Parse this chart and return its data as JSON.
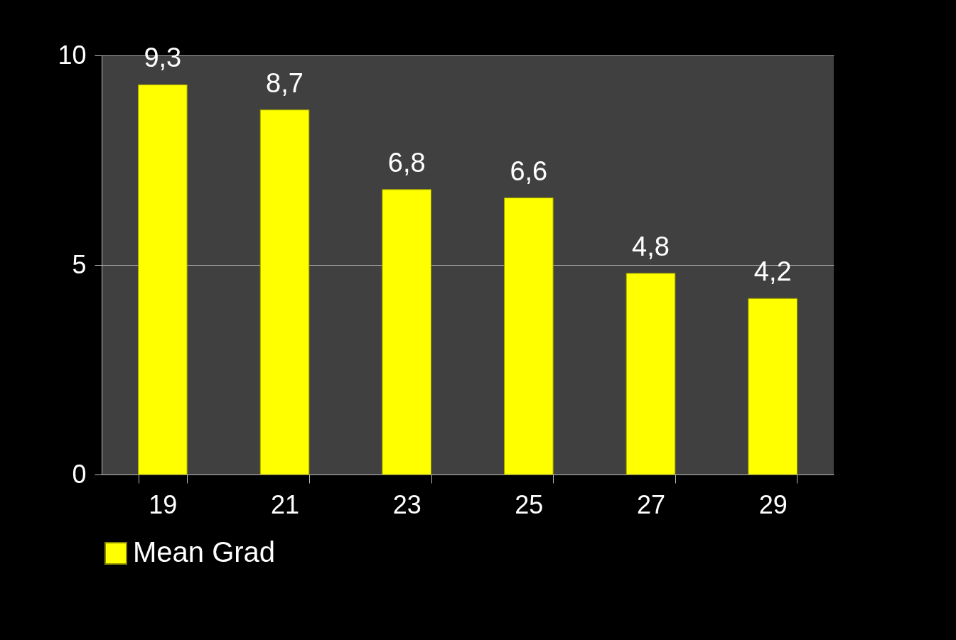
{
  "chart_data": {
    "type": "bar",
    "categories": [
      "19",
      "21",
      "23",
      "25",
      "27",
      "29"
    ],
    "series": [
      {
        "name": "Mean Grad",
        "color": "#ffff00",
        "values": [
          9.3,
          8.7,
          6.8,
          6.6,
          4.8,
          4.2
        ],
        "value_labels": [
          "9,3",
          "8,7",
          "6,8",
          "6,6",
          "4,8",
          "4,2"
        ]
      }
    ],
    "ylim": [
      0,
      10
    ],
    "yticks": [
      0,
      5,
      10
    ],
    "grid": "y",
    "legend": "bottom"
  }
}
